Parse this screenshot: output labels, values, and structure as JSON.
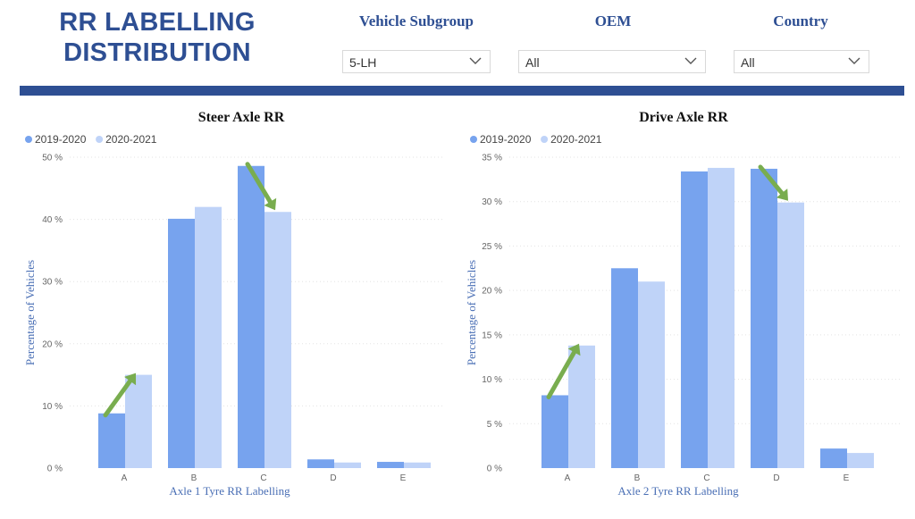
{
  "header": {
    "title_line1": "RR LABELLING",
    "title_line2": "DISTRIBUTION"
  },
  "filters": [
    {
      "label": "Vehicle Subgroup",
      "value": "5-LH"
    },
    {
      "label": "OEM",
      "value": "All"
    },
    {
      "label": "Country",
      "value": "All"
    }
  ],
  "colors": {
    "series_2019": "#77a3ee",
    "series_2020": "#bfd3f8",
    "accent": "#2e4f93",
    "arrow": "#79ad4f"
  },
  "chart_data": [
    {
      "type": "bar",
      "title": "Steer Axle RR",
      "xlabel": "Axle 1 Tyre RR Labelling",
      "ylabel": "Percentage of Vehicles",
      "categories": [
        "A",
        "B",
        "C",
        "D",
        "E"
      ],
      "ylim": [
        0,
        50
      ],
      "yticks": [
        0,
        10,
        20,
        30,
        40,
        50
      ],
      "ytick_labels": [
        "0 %",
        "10 %",
        "20 %",
        "30 %",
        "40 %",
        "50 %"
      ],
      "legend_position": "top-left",
      "series": [
        {
          "name": "2019-2020",
          "values": [
            8.8,
            40.1,
            48.6,
            1.4,
            1.0
          ]
        },
        {
          "name": "2020-2021",
          "values": [
            15.0,
            42.0,
            41.2,
            0.9,
            0.9
          ]
        }
      ],
      "annotations": [
        {
          "type": "arrow",
          "direction": "up",
          "category": "A"
        },
        {
          "type": "arrow",
          "direction": "down",
          "category": "C"
        }
      ]
    },
    {
      "type": "bar",
      "title": "Drive Axle RR",
      "xlabel": "Axle 2 Tyre RR Labelling",
      "ylabel": "Percentage of Vehicles",
      "categories": [
        "A",
        "B",
        "C",
        "D",
        "E"
      ],
      "ylim": [
        0,
        35
      ],
      "yticks": [
        0,
        5,
        10,
        15,
        20,
        25,
        30,
        35
      ],
      "ytick_labels": [
        "0 %",
        "5 %",
        "10 %",
        "15 %",
        "20 %",
        "25 %",
        "30 %",
        "35 %"
      ],
      "legend_position": "top-left",
      "series": [
        {
          "name": "2019-2020",
          "values": [
            8.2,
            22.5,
            33.4,
            33.7,
            2.2
          ]
        },
        {
          "name": "2020-2021",
          "values": [
            13.8,
            21.0,
            33.8,
            29.9,
            1.7
          ]
        }
      ],
      "annotations": [
        {
          "type": "arrow",
          "direction": "up",
          "category": "A"
        },
        {
          "type": "arrow",
          "direction": "down",
          "category": "D"
        }
      ]
    }
  ]
}
